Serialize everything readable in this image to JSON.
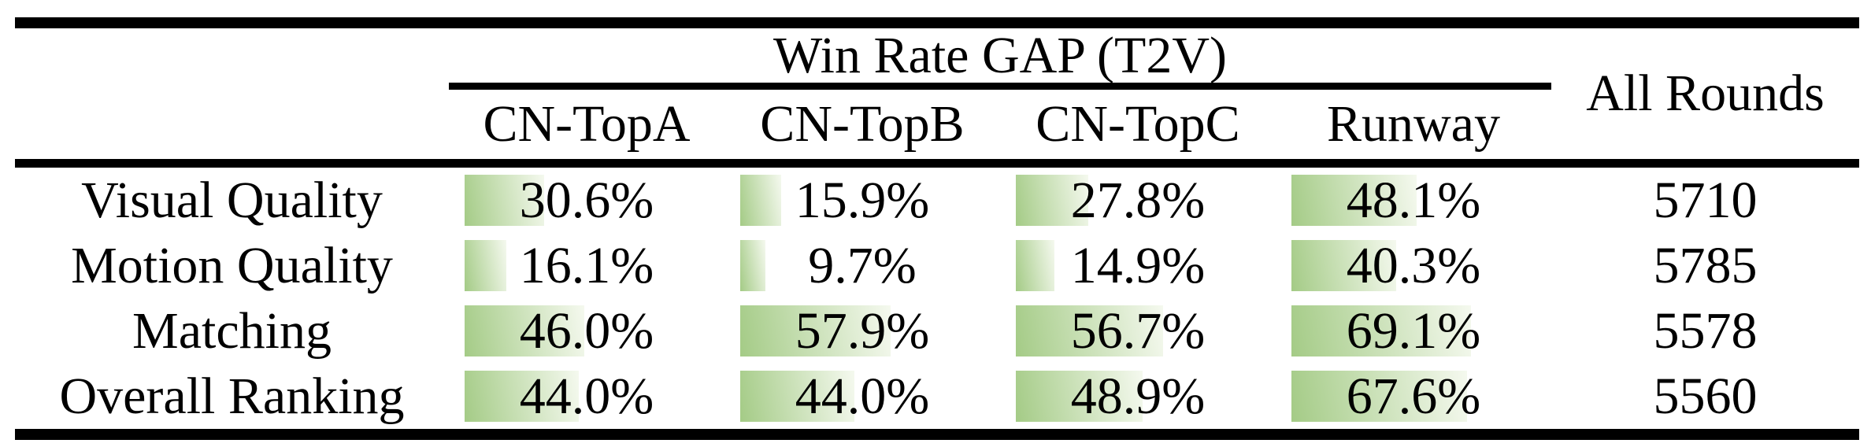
{
  "table": {
    "group_header": "Win Rate GAP (T2V)",
    "columns": [
      "CN-TopA",
      "CN-TopB",
      "CN-TopC",
      "Runway"
    ],
    "all_rounds_header": "All Rounds",
    "rows": [
      {
        "label": "Visual Quality",
        "values": [
          "30.6%",
          "15.9%",
          "27.8%",
          "48.1%"
        ],
        "all_rounds": "5710"
      },
      {
        "label": "Motion Quality",
        "values": [
          "16.1%",
          "9.7%",
          "14.9%",
          "40.3%"
        ],
        "all_rounds": "5785"
      },
      {
        "label": "Matching",
        "values": [
          "46.0%",
          "57.9%",
          "56.7%",
          "69.1%"
        ],
        "all_rounds": "5578"
      },
      {
        "label": "Overall Ranking",
        "values": [
          "44.0%",
          "44.0%",
          "48.9%",
          "67.6%"
        ],
        "all_rounds": "5560"
      }
    ]
  },
  "colors": {
    "rule": "#000000",
    "text": "#000000",
    "bar_gradient_start": "#a4cb86",
    "bar_gradient_end": "#f5f9ef"
  },
  "chart_data": {
    "type": "table",
    "title": "Win Rate GAP (T2V)",
    "columns": [
      "CN-TopA",
      "CN-TopB",
      "CN-TopC",
      "Runway",
      "All Rounds"
    ],
    "row_labels": [
      "Visual Quality",
      "Motion Quality",
      "Matching",
      "Overall Ranking"
    ],
    "series": [
      {
        "name": "CN-TopA",
        "values": [
          30.6,
          16.1,
          46.0,
          44.0
        ]
      },
      {
        "name": "CN-TopB",
        "values": [
          15.9,
          9.7,
          57.9,
          44.0
        ]
      },
      {
        "name": "CN-TopC",
        "values": [
          27.8,
          14.9,
          56.7,
          48.9
        ]
      },
      {
        "name": "Runway",
        "values": [
          48.1,
          40.3,
          69.1,
          67.6
        ]
      }
    ],
    "all_rounds": [
      5710,
      5785,
      5578,
      5560
    ],
    "units": "percent",
    "value_range": [
      0,
      100
    ],
    "bar_visualization": "in-cell left-anchored horizontal bars, green-to-white gradient, width proportional to percentage"
  }
}
